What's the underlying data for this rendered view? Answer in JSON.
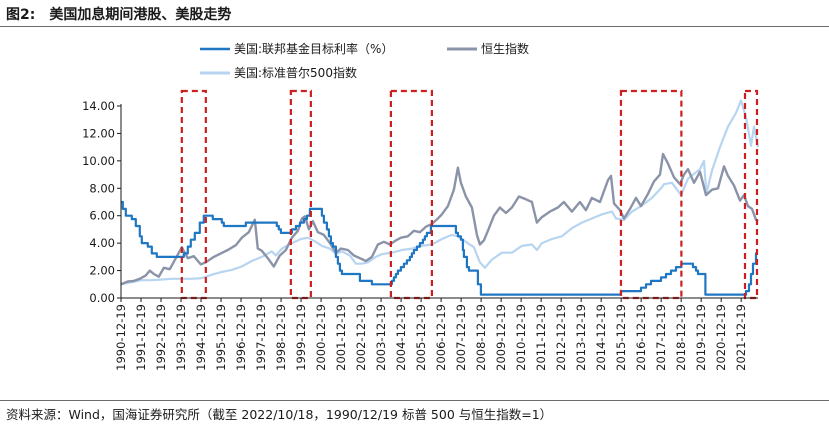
{
  "header": {
    "figure_no": "图2:",
    "title": "美国加息期间港股、美股走势"
  },
  "footer": {
    "source": "资料来源：Wind，国海证券研究所（截至 2022/10/18，1990/12/19 标普 500 与恒生指数=1）"
  },
  "colors": {
    "fed_rate": "#1f77c4",
    "hsi": "#8a93a8",
    "spx": "#b7d5f0",
    "highlight": "#cc1f1f",
    "axis": "#1a1a1a"
  },
  "chart_data": {
    "type": "line",
    "ylim": [
      0,
      14
    ],
    "yticks": [
      "0.00",
      "2.00",
      "4.00",
      "6.00",
      "8.00",
      "10.00",
      "12.00",
      "14.00"
    ],
    "xlim": [
      1990.96,
      2022.8
    ],
    "xticks": [
      "1990-12-19",
      "1991-12-19",
      "1992-12-19",
      "1993-12-19",
      "1994-12-19",
      "1995-12-19",
      "1996-12-19",
      "1997-12-19",
      "1998-12-19",
      "1999-12-19",
      "2000-12-19",
      "2001-12-19",
      "2002-12-19",
      "2003-12-19",
      "2004-12-19",
      "2005-12-19",
      "2006-12-19",
      "2007-12-19",
      "2008-12-19",
      "2009-12-19",
      "2010-12-19",
      "2011-12-19",
      "2012-12-19",
      "2013-12-19",
      "2014-12-19",
      "2015-12-19",
      "2016-12-19",
      "2017-12-19",
      "2018-12-19",
      "2019-12-19",
      "2020-12-19",
      "2021-12-19"
    ],
    "legend": [
      "美国:联邦基金目标利率（%）",
      "恒生指数",
      "美国:标准普尔500指数"
    ],
    "highlight_periods": [
      {
        "start": 1994.0,
        "end": 1995.2
      },
      {
        "start": 1999.45,
        "end": 2000.45
      },
      {
        "start": 2004.45,
        "end": 2006.5
      },
      {
        "start": 2015.95,
        "end": 2018.97
      },
      {
        "start": 2022.15,
        "end": 2022.75
      }
    ],
    "series": [
      {
        "name": "美国:联邦基金目标利率（%）",
        "step": true,
        "points": [
          [
            1990.96,
            7.0
          ],
          [
            1991.05,
            6.5
          ],
          [
            1991.2,
            6.0
          ],
          [
            1991.5,
            5.75
          ],
          [
            1991.7,
            5.25
          ],
          [
            1991.9,
            4.5
          ],
          [
            1992.0,
            4.0
          ],
          [
            1992.3,
            3.75
          ],
          [
            1992.5,
            3.25
          ],
          [
            1992.75,
            3.0
          ],
          [
            1994.1,
            3.25
          ],
          [
            1994.3,
            3.75
          ],
          [
            1994.45,
            4.25
          ],
          [
            1994.65,
            4.75
          ],
          [
            1994.9,
            5.5
          ],
          [
            1995.1,
            6.0
          ],
          [
            1995.55,
            5.75
          ],
          [
            1996.0,
            5.5
          ],
          [
            1996.1,
            5.25
          ],
          [
            1997.2,
            5.5
          ],
          [
            1998.75,
            5.25
          ],
          [
            1998.85,
            5.0
          ],
          [
            1998.95,
            4.75
          ],
          [
            1999.5,
            5.0
          ],
          [
            1999.7,
            5.25
          ],
          [
            1999.9,
            5.5
          ],
          [
            2000.1,
            5.75
          ],
          [
            2000.25,
            6.0
          ],
          [
            2000.4,
            6.5
          ],
          [
            2001.0,
            6.0
          ],
          [
            2001.1,
            5.5
          ],
          [
            2001.25,
            5.0
          ],
          [
            2001.35,
            4.5
          ],
          [
            2001.45,
            4.0
          ],
          [
            2001.55,
            3.75
          ],
          [
            2001.7,
            3.0
          ],
          [
            2001.8,
            2.5
          ],
          [
            2001.9,
            2.0
          ],
          [
            2002.0,
            1.75
          ],
          [
            2002.9,
            1.25
          ],
          [
            2003.5,
            1.0
          ],
          [
            2004.5,
            1.25
          ],
          [
            2004.6,
            1.5
          ],
          [
            2004.7,
            1.75
          ],
          [
            2004.8,
            2.0
          ],
          [
            2004.95,
            2.25
          ],
          [
            2005.1,
            2.5
          ],
          [
            2005.25,
            2.75
          ],
          [
            2005.4,
            3.0
          ],
          [
            2005.5,
            3.25
          ],
          [
            2005.6,
            3.5
          ],
          [
            2005.75,
            3.75
          ],
          [
            2005.9,
            4.0
          ],
          [
            2006.05,
            4.25
          ],
          [
            2006.15,
            4.5
          ],
          [
            2006.25,
            4.75
          ],
          [
            2006.45,
            5.25
          ],
          [
            2007.7,
            4.75
          ],
          [
            2007.8,
            4.5
          ],
          [
            2007.95,
            4.25
          ],
          [
            2008.05,
            3.5
          ],
          [
            2008.1,
            3.0
          ],
          [
            2008.25,
            2.25
          ],
          [
            2008.35,
            2.0
          ],
          [
            2008.8,
            1.0
          ],
          [
            2008.95,
            0.25
          ],
          [
            2015.95,
            0.5
          ],
          [
            2016.95,
            0.75
          ],
          [
            2017.2,
            1.0
          ],
          [
            2017.45,
            1.25
          ],
          [
            2017.95,
            1.5
          ],
          [
            2018.2,
            1.75
          ],
          [
            2018.45,
            2.0
          ],
          [
            2018.7,
            2.25
          ],
          [
            2018.97,
            2.5
          ],
          [
            2019.55,
            2.25
          ],
          [
            2019.7,
            2.0
          ],
          [
            2019.8,
            1.75
          ],
          [
            2020.17,
            0.25
          ],
          [
            2022.2,
            0.5
          ],
          [
            2022.35,
            1.0
          ],
          [
            2022.45,
            1.75
          ],
          [
            2022.55,
            2.5
          ],
          [
            2022.7,
            3.25
          ],
          [
            2022.8,
            3.25
          ]
        ]
      },
      {
        "name": "恒生指数",
        "step": false,
        "points": [
          [
            1990.96,
            1.0
          ],
          [
            1991.3,
            1.2
          ],
          [
            1991.6,
            1.25
          ],
          [
            1991.9,
            1.4
          ],
          [
            1992.2,
            1.65
          ],
          [
            1992.4,
            2.0
          ],
          [
            1992.6,
            1.75
          ],
          [
            1992.85,
            1.55
          ],
          [
            1993.1,
            2.2
          ],
          [
            1993.4,
            2.1
          ],
          [
            1993.7,
            2.9
          ],
          [
            1994.0,
            3.7
          ],
          [
            1994.3,
            2.9
          ],
          [
            1994.6,
            3.05
          ],
          [
            1994.95,
            2.45
          ],
          [
            1995.2,
            2.6
          ],
          [
            1995.6,
            3.0
          ],
          [
            1995.95,
            3.25
          ],
          [
            1996.3,
            3.5
          ],
          [
            1996.7,
            3.85
          ],
          [
            1997.0,
            4.4
          ],
          [
            1997.35,
            4.8
          ],
          [
            1997.55,
            5.4
          ],
          [
            1997.65,
            5.7
          ],
          [
            1997.8,
            3.6
          ],
          [
            1998.0,
            3.45
          ],
          [
            1998.3,
            2.9
          ],
          [
            1998.6,
            2.3
          ],
          [
            1998.9,
            3.1
          ],
          [
            1999.2,
            3.5
          ],
          [
            1999.5,
            4.4
          ],
          [
            1999.8,
            4.9
          ],
          [
            2000.0,
            5.8
          ],
          [
            2000.15,
            5.95
          ],
          [
            2000.35,
            5.0
          ],
          [
            2000.55,
            5.6
          ],
          [
            2000.8,
            4.8
          ],
          [
            2001.1,
            4.6
          ],
          [
            2001.4,
            4.0
          ],
          [
            2001.7,
            3.3
          ],
          [
            2001.95,
            3.6
          ],
          [
            2002.3,
            3.5
          ],
          [
            2002.6,
            3.1
          ],
          [
            2002.9,
            2.9
          ],
          [
            2003.2,
            2.7
          ],
          [
            2003.5,
            3.0
          ],
          [
            2003.8,
            3.9
          ],
          [
            2004.1,
            4.1
          ],
          [
            2004.4,
            3.9
          ],
          [
            2004.7,
            4.2
          ],
          [
            2004.95,
            4.4
          ],
          [
            2005.3,
            4.5
          ],
          [
            2005.6,
            4.9
          ],
          [
            2005.9,
            4.8
          ],
          [
            2006.2,
            5.2
          ],
          [
            2006.5,
            5.4
          ],
          [
            2006.8,
            5.8
          ],
          [
            2007.0,
            6.1
          ],
          [
            2007.3,
            6.7
          ],
          [
            2007.6,
            7.9
          ],
          [
            2007.8,
            9.5
          ],
          [
            2007.95,
            8.4
          ],
          [
            2008.2,
            7.4
          ],
          [
            2008.5,
            6.6
          ],
          [
            2008.75,
            4.6
          ],
          [
            2008.9,
            3.9
          ],
          [
            2009.1,
            4.2
          ],
          [
            2009.3,
            4.9
          ],
          [
            2009.6,
            6.0
          ],
          [
            2009.9,
            6.6
          ],
          [
            2010.2,
            6.2
          ],
          [
            2010.5,
            6.6
          ],
          [
            2010.85,
            7.4
          ],
          [
            2011.2,
            7.2
          ],
          [
            2011.5,
            7.0
          ],
          [
            2011.75,
            5.5
          ],
          [
            2012.0,
            5.9
          ],
          [
            2012.4,
            6.3
          ],
          [
            2012.8,
            6.6
          ],
          [
            2013.1,
            7.0
          ],
          [
            2013.5,
            6.3
          ],
          [
            2013.9,
            7.0
          ],
          [
            2014.2,
            6.4
          ],
          [
            2014.5,
            7.3
          ],
          [
            2014.9,
            7.0
          ],
          [
            2015.3,
            8.6
          ],
          [
            2015.45,
            8.9
          ],
          [
            2015.6,
            6.9
          ],
          [
            2015.9,
            6.4
          ],
          [
            2016.1,
            5.8
          ],
          [
            2016.4,
            6.5
          ],
          [
            2016.7,
            7.3
          ],
          [
            2016.95,
            6.7
          ],
          [
            2017.3,
            7.6
          ],
          [
            2017.6,
            8.5
          ],
          [
            2017.9,
            9.0
          ],
          [
            2018.05,
            10.5
          ],
          [
            2018.3,
            9.8
          ],
          [
            2018.6,
            8.8
          ],
          [
            2018.9,
            8.3
          ],
          [
            2019.1,
            9.0
          ],
          [
            2019.3,
            9.4
          ],
          [
            2019.6,
            8.4
          ],
          [
            2019.9,
            9.2
          ],
          [
            2020.2,
            7.5
          ],
          [
            2020.5,
            7.9
          ],
          [
            2020.8,
            8.0
          ],
          [
            2021.1,
            9.6
          ],
          [
            2021.3,
            8.9
          ],
          [
            2021.6,
            8.2
          ],
          [
            2021.9,
            7.1
          ],
          [
            2022.1,
            7.5
          ],
          [
            2022.3,
            6.7
          ],
          [
            2022.5,
            6.5
          ],
          [
            2022.7,
            5.7
          ],
          [
            2022.8,
            5.6
          ]
        ]
      },
      {
        "name": "美国:标准普尔500指数",
        "step": false,
        "points": [
          [
            1990.96,
            1.0
          ],
          [
            1991.5,
            1.15
          ],
          [
            1992.0,
            1.3
          ],
          [
            1992.5,
            1.3
          ],
          [
            1993.0,
            1.35
          ],
          [
            1993.5,
            1.4
          ],
          [
            1994.0,
            1.4
          ],
          [
            1994.5,
            1.4
          ],
          [
            1995.0,
            1.45
          ],
          [
            1995.5,
            1.7
          ],
          [
            1996.0,
            1.9
          ],
          [
            1996.5,
            2.05
          ],
          [
            1997.0,
            2.3
          ],
          [
            1997.5,
            2.7
          ],
          [
            1998.0,
            3.0
          ],
          [
            1998.5,
            3.4
          ],
          [
            1998.7,
            3.1
          ],
          [
            1999.0,
            3.6
          ],
          [
            1999.5,
            4.0
          ],
          [
            1999.95,
            4.3
          ],
          [
            2000.3,
            4.4
          ],
          [
            2000.7,
            4.1
          ],
          [
            2001.0,
            3.8
          ],
          [
            2001.4,
            3.6
          ],
          [
            2001.7,
            3.2
          ],
          [
            2002.0,
            3.4
          ],
          [
            2002.4,
            3.1
          ],
          [
            2002.7,
            2.5
          ],
          [
            2003.0,
            2.5
          ],
          [
            2003.3,
            2.6
          ],
          [
            2003.7,
            3.0
          ],
          [
            2004.0,
            3.2
          ],
          [
            2004.5,
            3.3
          ],
          [
            2005.0,
            3.5
          ],
          [
            2005.5,
            3.6
          ],
          [
            2006.0,
            3.8
          ],
          [
            2006.5,
            3.9
          ],
          [
            2007.0,
            4.3
          ],
          [
            2007.5,
            4.6
          ],
          [
            2007.8,
            4.5
          ],
          [
            2008.2,
            4.1
          ],
          [
            2008.6,
            3.7
          ],
          [
            2008.9,
            2.6
          ],
          [
            2009.15,
            2.2
          ],
          [
            2009.5,
            2.8
          ],
          [
            2010.0,
            3.3
          ],
          [
            2010.5,
            3.3
          ],
          [
            2011.0,
            3.8
          ],
          [
            2011.5,
            3.9
          ],
          [
            2011.75,
            3.5
          ],
          [
            2012.0,
            4.0
          ],
          [
            2012.5,
            4.3
          ],
          [
            2013.0,
            4.5
          ],
          [
            2013.5,
            5.1
          ],
          [
            2014.0,
            5.5
          ],
          [
            2014.5,
            5.8
          ],
          [
            2015.0,
            6.1
          ],
          [
            2015.5,
            6.3
          ],
          [
            2015.7,
            5.8
          ],
          [
            2016.1,
            5.7
          ],
          [
            2016.5,
            6.3
          ],
          [
            2016.95,
            6.7
          ],
          [
            2017.5,
            7.3
          ],
          [
            2017.95,
            8.0
          ],
          [
            2018.1,
            8.3
          ],
          [
            2018.5,
            8.4
          ],
          [
            2018.95,
            7.5
          ],
          [
            2019.3,
            8.7
          ],
          [
            2019.9,
            9.4
          ],
          [
            2020.1,
            10.0
          ],
          [
            2020.22,
            7.6
          ],
          [
            2020.5,
            9.3
          ],
          [
            2020.9,
            11.0
          ],
          [
            2021.3,
            12.5
          ],
          [
            2021.7,
            13.5
          ],
          [
            2021.95,
            14.4
          ],
          [
            2022.2,
            13.2
          ],
          [
            2022.45,
            11.1
          ],
          [
            2022.6,
            12.5
          ],
          [
            2022.8,
            11.0
          ]
        ]
      }
    ]
  }
}
